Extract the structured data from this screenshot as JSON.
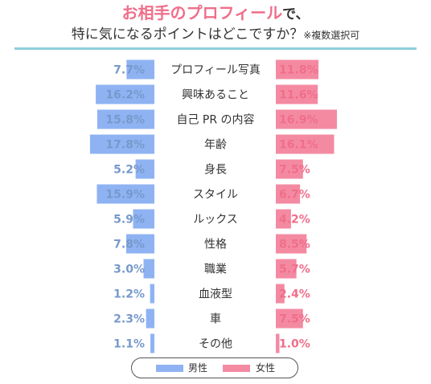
{
  "header": {
    "title_accent": "お相手のプロフィール",
    "title_rest": "で、",
    "subtitle": "特に気になるポイントはどこですか？",
    "subtitle_note": "※複数選択可"
  },
  "colors": {
    "male": "#8fb3f2",
    "female": "#f48aa2",
    "male_text": "#7799cc",
    "female_text": "#f06e8a",
    "rule": "#8ecfdc"
  },
  "chart_data": {
    "type": "bar",
    "orientation": "horizontal-butterfly",
    "value_unit": "%",
    "categories": [
      "プロフィール写真",
      "興味あること",
      "自己PRの内容",
      "年齢",
      "身長",
      "スタイル",
      "ルックス",
      "性格",
      "職業",
      "血液型",
      "車",
      "その他"
    ],
    "category_labels": [
      "プロフィール写真",
      "興味あること",
      "自己 PR の内容",
      "年齢",
      "身長",
      "スタイル",
      "ルックス",
      "性格",
      "職業",
      "血液型",
      "車",
      "その他"
    ],
    "series": [
      {
        "name": "男性",
        "side": "left",
        "values": [
          7.7,
          16.2,
          15.8,
          17.8,
          5.2,
          15.9,
          5.9,
          7.8,
          3.0,
          1.2,
          2.3,
          1.1
        ],
        "labels": [
          "7.7%",
          "16.2%",
          "15.8%",
          "17.8%",
          "5.2%",
          "15.9%",
          "5.9%",
          "7.8%",
          "3.0%",
          "1.2%",
          "2.3%",
          "1.1%"
        ]
      },
      {
        "name": "女性",
        "side": "right",
        "values": [
          11.8,
          11.6,
          16.9,
          16.1,
          7.5,
          6.7,
          4.2,
          8.5,
          5.7,
          2.4,
          7.5,
          1.0
        ],
        "labels": [
          "11.8%",
          "11.6%",
          "16.9%",
          "16.1%",
          "7.5%",
          "6.7%",
          "4.2%",
          "8.5%",
          "5.7%",
          "2.4%",
          "7.5%",
          "1.0%"
        ]
      }
    ]
  },
  "legend": {
    "male_label": "男性",
    "female_label": "女性"
  }
}
